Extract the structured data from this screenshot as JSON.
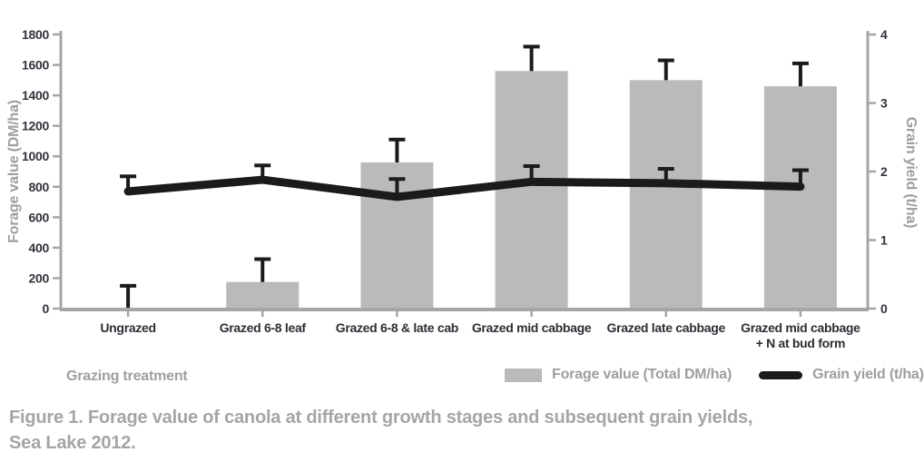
{
  "caption": {
    "line1": "Figure 1. Forage value of canola at different growth stages and subsequent grain yields,",
    "line2": "Sea Lake 2012."
  },
  "chart_data": {
    "type": "bar",
    "categories": [
      "Ungrazed",
      "Grazed 6-8 leaf",
      "Grazed 6-8 & late cab",
      "Grazed mid cabbage",
      "Grazed late cabbage",
      "Grazed mid cabbage\n+ N at bud form"
    ],
    "series": [
      {
        "name": "Forage value (Total DM/ha)",
        "type": "bar",
        "axis": "left",
        "values": [
          0,
          175,
          960,
          1560,
          1500,
          1460
        ],
        "error_up": [
          150,
          150,
          150,
          160,
          130,
          150
        ],
        "color": "#b9babc"
      },
      {
        "name": "Grain yield (t/ha)",
        "type": "line",
        "axis": "right",
        "values": [
          1.71,
          1.88,
          1.63,
          1.85,
          1.83,
          1.78
        ],
        "error_up": [
          0.22,
          0.21,
          0.26,
          0.23,
          0.21,
          0.24
        ],
        "color": "#1b1b1d"
      }
    ],
    "left_axis": {
      "label": "Forage value (DM/ha)",
      "min": 0,
      "max": 1800,
      "step": 200
    },
    "right_axis": {
      "label": "Grain yield (t/ha)",
      "min": 0,
      "max": 4,
      "step": 1
    },
    "x_axis": {
      "label": "Grazing treatment"
    },
    "legend": [
      "Forage value (Total DM/ha)",
      "Grain yield (t/ha)"
    ],
    "grid": false,
    "legend_position": "bottom",
    "colors": {
      "bar": "#b9babc",
      "line": "#1b1b1d",
      "axis": "#a5a6a8",
      "tick_text": "#33333c",
      "gray_text": "#9d9ea1",
      "caption_text": "#a4a5a8"
    }
  }
}
